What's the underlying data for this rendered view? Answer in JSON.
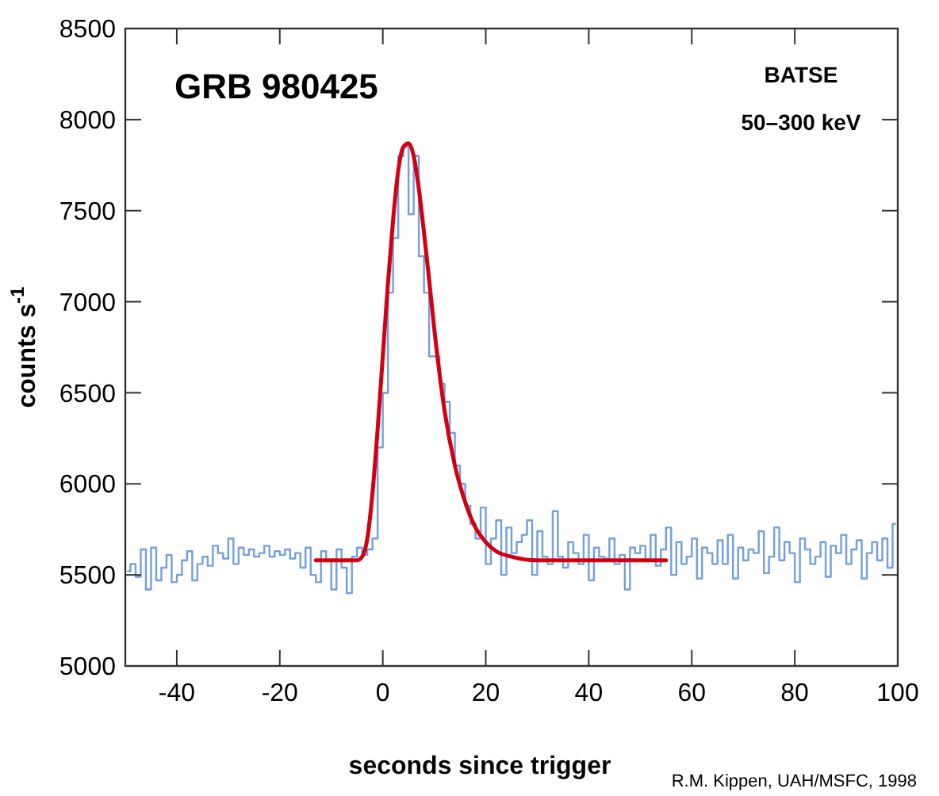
{
  "chart_data": {
    "type": "line",
    "title": "GRB 980425",
    "xlabel": "seconds since trigger",
    "ylabel": "counts s$^{-1}$",
    "annotations": [
      "BATSE",
      "50–300 keV",
      "R.M. Kippen, UAH/MSFC, 1998"
    ],
    "xlim": [
      -50,
      100
    ],
    "xticks": [
      -40,
      -20,
      0,
      20,
      40,
      60,
      80,
      100
    ],
    "ylim": [
      5000,
      8500
    ],
    "yticks": [
      5000,
      5500,
      6000,
      6500,
      7000,
      7500,
      8000,
      8500
    ],
    "grid": false,
    "series": [
      {
        "type": "step",
        "color": "#6f9fe0",
        "x": [
          -49.5,
          -48.5,
          -47.5,
          -46.5,
          -45.5,
          -44.5,
          -43.5,
          -42.5,
          -41.5,
          -40.5,
          -39.5,
          -38.5,
          -37.5,
          -36.5,
          -35.5,
          -34.5,
          -33.5,
          -32.5,
          -31.5,
          -30.5,
          -29.5,
          -28.5,
          -27.5,
          -26.5,
          -25.5,
          -24.5,
          -23.5,
          -22.5,
          -21.5,
          -20.5,
          -19.5,
          -18.5,
          -17.5,
          -16.5,
          -15.5,
          -14.5,
          -13.5,
          -12.5,
          -11.5,
          -10.5,
          -9.5,
          -8.5,
          -7.5,
          -6.5,
          -5.5,
          -4.5,
          -3.5,
          -2.5,
          -1.5,
          -0.5,
          0.5,
          1.5,
          2.5,
          3.5,
          4.5,
          5.5,
          6.5,
          7.5,
          8.5,
          9.5,
          10.5,
          11.5,
          12.5,
          13.5,
          14.5,
          15.5,
          16.5,
          17.5,
          18.5,
          19.5,
          20.5,
          21.5,
          22.5,
          23.5,
          24.5,
          25.5,
          26.5,
          27.5,
          28.5,
          29.5,
          30.5,
          31.5,
          32.5,
          33.5,
          34.5,
          35.5,
          36.5,
          37.5,
          38.5,
          39.5,
          40.5,
          41.5,
          42.5,
          43.5,
          44.5,
          45.5,
          46.5,
          47.5,
          48.5,
          49.5,
          50.5,
          51.5,
          52.5,
          53.5,
          54.5,
          55.5,
          56.5,
          57.5,
          58.5,
          59.5,
          60.5,
          61.5,
          62.5,
          63.5,
          64.5,
          65.5,
          66.5,
          67.5,
          68.5,
          69.5,
          70.5,
          71.5,
          72.5,
          73.5,
          74.5,
          75.5,
          76.5,
          77.5,
          78.5,
          79.5,
          80.5,
          81.5,
          82.5,
          83.5,
          84.5,
          85.5,
          86.5,
          87.5,
          88.5,
          89.5,
          90.5,
          91.5,
          92.5,
          93.5,
          94.5,
          95.5,
          96.5,
          97.5,
          98.5,
          99.5
        ],
        "values": [
          5520,
          5560,
          5490,
          5640,
          5420,
          5650,
          5470,
          5540,
          5610,
          5460,
          5500,
          5580,
          5630,
          5470,
          5560,
          5600,
          5550,
          5660,
          5620,
          5590,
          5700,
          5560,
          5650,
          5610,
          5640,
          5600,
          5620,
          5660,
          5600,
          5630,
          5610,
          5640,
          5590,
          5620,
          5540,
          5650,
          5500,
          5460,
          5630,
          5580,
          5420,
          5640,
          5540,
          5400,
          5600,
          5650,
          5610,
          5640,
          5700,
          6200,
          6500,
          7050,
          7350,
          7800,
          7850,
          7480,
          7800,
          7250,
          7050,
          6700,
          6700,
          6550,
          6450,
          6280,
          6100,
          6000,
          5880,
          5780,
          5700,
          5870,
          5560,
          5700,
          5800,
          5500,
          5760,
          5620,
          5680,
          5720,
          5800,
          5500,
          5740,
          5600,
          5560,
          5850,
          5600,
          5540,
          5680,
          5620,
          5560,
          5720,
          5470,
          5650,
          5600,
          5590,
          5700,
          5560,
          5610,
          5420,
          5650,
          5620,
          5660,
          5580,
          5720,
          5550,
          5640,
          5760,
          5500,
          5680,
          5560,
          5600,
          5700,
          5480,
          5650,
          5620,
          5560,
          5690,
          5560,
          5720,
          5480,
          5650,
          5580,
          5640,
          5620,
          5740,
          5510,
          5600,
          5760,
          5580,
          5680,
          5620,
          5460,
          5700,
          5640,
          5560,
          5600,
          5680,
          5490,
          5660,
          5620,
          5720,
          5560,
          5640,
          5690,
          5480,
          5620,
          5680,
          5580,
          5700,
          5540,
          5780
        ]
      },
      {
        "color": "#d40010",
        "x": [
          -13,
          -5,
          -4,
          -3,
          -2,
          -1,
          0,
          1,
          2,
          3,
          4,
          5,
          6,
          7,
          8,
          9,
          10,
          12,
          14,
          16,
          18,
          20,
          22,
          25,
          30,
          55
        ],
        "values": [
          5580,
          5580,
          5600,
          5700,
          5950,
          6300,
          6700,
          7100,
          7450,
          7720,
          7850,
          7870,
          7800,
          7620,
          7380,
          7120,
          6850,
          6400,
          6100,
          5900,
          5760,
          5680,
          5630,
          5600,
          5580,
          5580
        ]
      }
    ]
  }
}
